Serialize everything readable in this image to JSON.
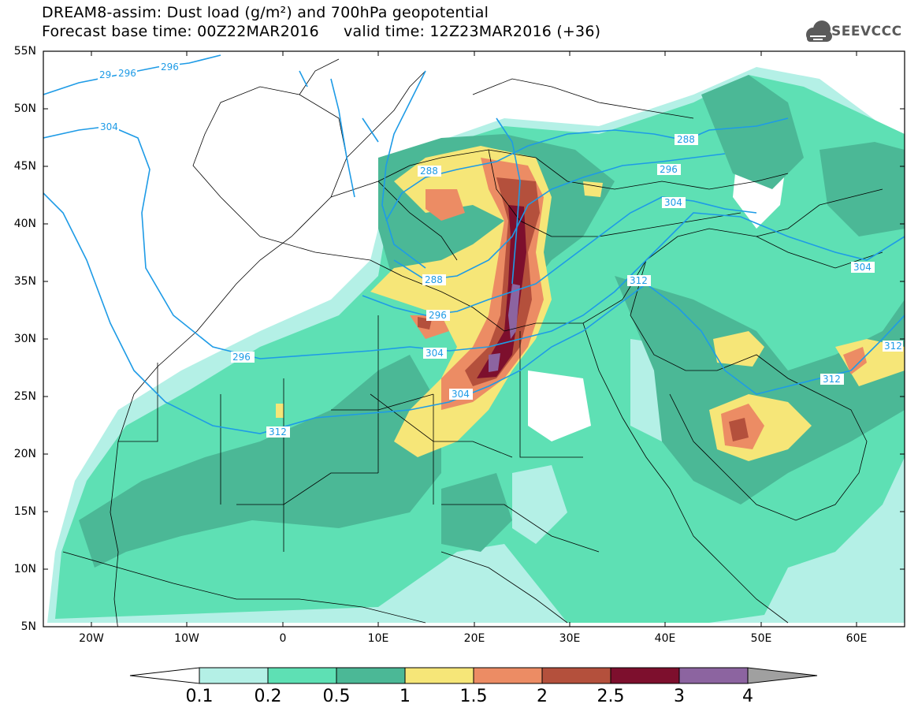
{
  "title": {
    "line1": "DREAM8-assim: Dust load (g/m²) and 700hPa geopotential",
    "line2": "Forecast base time: 00Z22MAR2016     valid time: 12Z23MAR2016 (+36)"
  },
  "logo": {
    "text": "SEEVCCC",
    "icon": "cloud-icon"
  },
  "map": {
    "lon_range": [
      -25,
      65
    ],
    "lat_range": [
      5,
      55
    ],
    "lat_labels": [
      "55N",
      "50N",
      "45N",
      "40N",
      "35N",
      "30N",
      "25N",
      "20N",
      "15N",
      "10N",
      "5N"
    ],
    "lon_labels": [
      "20W",
      "10W",
      "0",
      "10E",
      "20E",
      "30E",
      "40E",
      "50E",
      "60E"
    ],
    "contour_color": "#1e9be6",
    "contour_labels": [
      "29",
      "296",
      "296",
      "304",
      "288",
      "296",
      "304",
      "288",
      "296",
      "304",
      "312",
      "288",
      "296",
      "304",
      "312",
      "312",
      "304",
      "312"
    ]
  },
  "colorbar": {
    "labels": [
      "0.1",
      "0.2",
      "0.5",
      "1",
      "1.5",
      "2",
      "2.5",
      "3",
      "4"
    ],
    "colors": [
      "#b4f0e6",
      "#5ee0b4",
      "#4bb896",
      "#f6e678",
      "#ec8c64",
      "#b4503c",
      "#7d0f2d",
      "#8c64a0"
    ],
    "under_color": "#ffffff",
    "over_color": "#a0a0a0"
  }
}
